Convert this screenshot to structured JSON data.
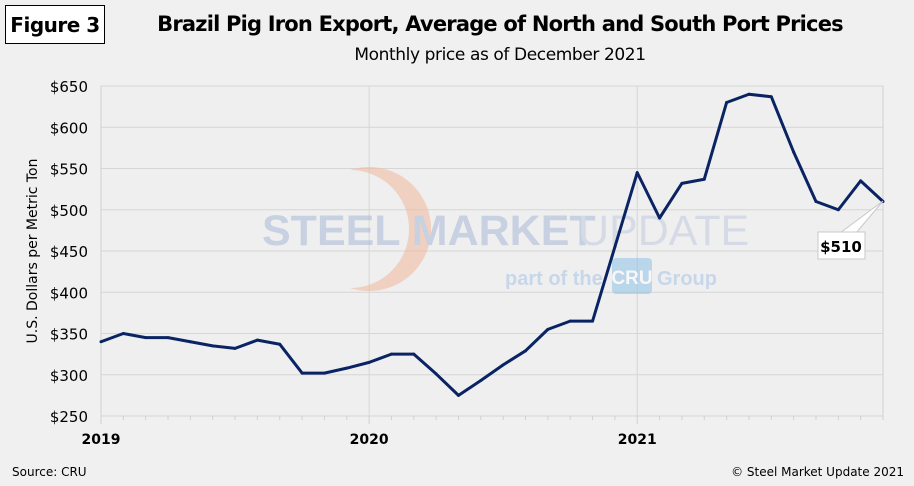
{
  "figure_label": "Figure 3",
  "footer": {
    "source": "Source: CRU",
    "copyright": "© Steel Market Update 2021"
  },
  "watermark": {
    "line1a": "STEEL MARKET",
    "line1b": "UPDATE",
    "line2a": "part of the",
    "line2b": "CRU",
    "line2c": "Group"
  },
  "chart_data": {
    "type": "line",
    "title": "Brazil Pig Iron Export, Average of North and South Port Prices",
    "subtitle": "Monthly price as of December  2021",
    "ylabel": "U.S. Dollars per Metric Ton",
    "xlabel": "",
    "ylim": [
      250,
      650
    ],
    "yticks": [
      "$250",
      "$300",
      "$350",
      "$400",
      "$450",
      "$500",
      "$550",
      "$600",
      "$650"
    ],
    "xticks": [
      "2019",
      "2020",
      "2021"
    ],
    "grid": true,
    "line_color": "#0a2463",
    "x": [
      "2019-01",
      "2019-02",
      "2019-03",
      "2019-04",
      "2019-05",
      "2019-06",
      "2019-07",
      "2019-08",
      "2019-09",
      "2019-10",
      "2019-11",
      "2019-12",
      "2020-01",
      "2020-02",
      "2020-03",
      "2020-04",
      "2020-05",
      "2020-06",
      "2020-07",
      "2020-08",
      "2020-09",
      "2020-10",
      "2020-11",
      "2020-12",
      "2021-01",
      "2021-02",
      "2021-03",
      "2021-04",
      "2021-05",
      "2021-06",
      "2021-07",
      "2021-08",
      "2021-09",
      "2021-10",
      "2021-11",
      "2021-12"
    ],
    "values": [
      340,
      350,
      345,
      345,
      340,
      335,
      332,
      342,
      337,
      302,
      302,
      308,
      315,
      325,
      325,
      301,
      275,
      293,
      312,
      329,
      355,
      365,
      365,
      455,
      545,
      490,
      532,
      537,
      630,
      640,
      637,
      570,
      510,
      500,
      535,
      510
    ],
    "annotation": "$510"
  }
}
